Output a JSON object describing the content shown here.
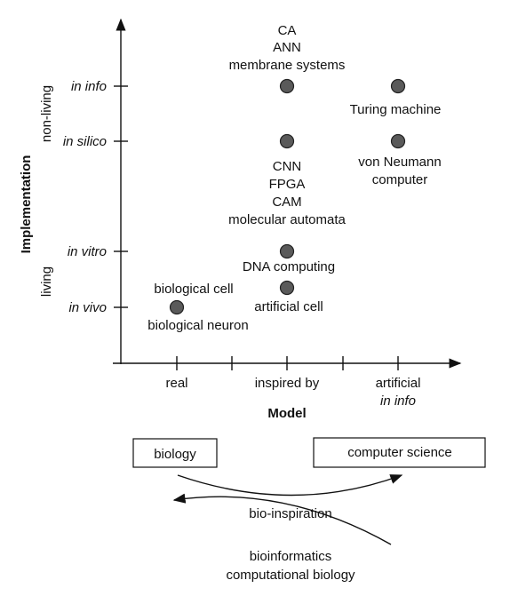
{
  "axes": {
    "x_title": "Model",
    "y_title": "Implementation",
    "x_ticks": [
      "real",
      "inspired by",
      "artificial",
      "in info"
    ],
    "y_ticks": [
      "in info",
      "in silico",
      "in vitro",
      "in vivo"
    ],
    "y_groups": [
      "non-living",
      "living"
    ]
  },
  "points": [
    {
      "name": "biological",
      "x": "real",
      "y": "in vivo",
      "labels": [
        "biological cell",
        "biological neuron"
      ]
    },
    {
      "name": "artificial-cell",
      "x": "inspired by",
      "y": "between in vitro and in vivo",
      "labels": [
        "artificial cell"
      ]
    },
    {
      "name": "dna",
      "x": "inspired by",
      "y": "in vitro",
      "labels": [
        "DNA computing"
      ]
    },
    {
      "name": "insilico-inspired",
      "x": "inspired by",
      "y": "in silico",
      "labels": [
        "CNN",
        "FPGA",
        "CAM",
        "molecular automata"
      ]
    },
    {
      "name": "ininfo-inspired",
      "x": "inspired by",
      "y": "in info",
      "labels": [
        "CA",
        "ANN",
        "membrane systems"
      ]
    },
    {
      "name": "turing",
      "x": "artificial in info",
      "y": "in info",
      "labels": [
        "Turing machine"
      ]
    },
    {
      "name": "vonneumann",
      "x": "artificial in info",
      "y": "in silico",
      "labels": [
        "von Neumann",
        "computer"
      ]
    }
  ],
  "bottom": {
    "box_left": "biology",
    "box_right": "computer science",
    "arrow_forward": "bio-inspiration",
    "arrow_back": [
      "bioinformatics",
      "computational biology"
    ]
  }
}
